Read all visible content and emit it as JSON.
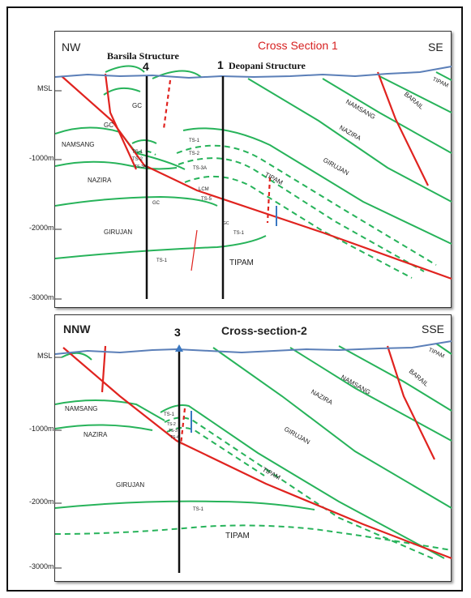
{
  "section1": {
    "title": "Cross Section 1",
    "left_dir": "NW",
    "right_dir": "SE",
    "structure_left": "Barsila Structure",
    "structure_right": "Deopani Structure",
    "well_a": "4",
    "well_b": "1",
    "depth_labels": [
      "MSL",
      "-1000m",
      "-2000m",
      "-3000m"
    ],
    "formations": {
      "tipam_corner": "TIPAM",
      "barail": "BARAIL",
      "namsang_right": "NAMSANG",
      "nazira_right": "NAZIRA",
      "girujan_right": "GIRUJAN",
      "tipam_mid": "TIPAM",
      "gc_upper": "GC",
      "gc_left": "GC",
      "namsang_left": "NAMSANG",
      "nazira_left": "NAZIRA",
      "girujan_left": "GIRUJAN",
      "tipam_bottom": "TIPAM",
      "gc_lower": "GC",
      "ts1_a": "TS-1",
      "ts1_b": "TS-1",
      "ts1_c": "TS-1",
      "ts1_d": "TS-1",
      "ts2_a": "TS-2",
      "ts2_b": "TS-2",
      "ts3a": "TS-3A",
      "ts_small": "TS-3A",
      "ts5": "TS-5",
      "lcm": "LCM",
      "gc_tiny": "GC"
    }
  },
  "section2": {
    "title": "Cross-section-2",
    "left_dir": "NNW",
    "right_dir": "SSE",
    "well": "3",
    "depth_labels": [
      "MSL",
      "-1000m",
      "-2000m",
      "-3000m"
    ],
    "formations": {
      "tipam_corner": "TIPAM",
      "barail": "BARAIL",
      "namsang_right": "NAMSANG",
      "nazira_right": "NAZIRA",
      "girujan_right": "GIRUJAN",
      "tipam_mid": "TIPAM",
      "namsang_left": "NAMSANG",
      "nazira_left": "NAZIRA",
      "girujan_left": "GIRUJAN",
      "tipam_bottom": "TIPAM",
      "ts1_a": "TS-1",
      "ts1_b": "TS-1",
      "ts2": "TS-2",
      "ts3": "TS-3",
      "ts4": "TS-4"
    }
  },
  "colors": {
    "fault": "#e0231f",
    "horizon": "#27b35a",
    "surface": "#5b7fb8",
    "well": "#111111",
    "title_red": "#d62020",
    "marker_blue": "#3a78c2"
  }
}
